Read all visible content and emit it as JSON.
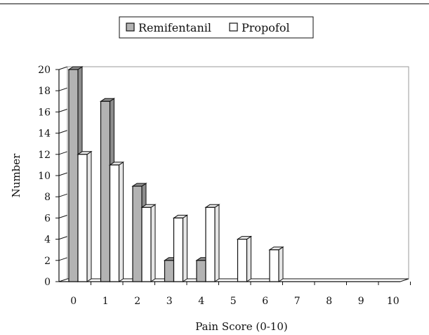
{
  "chart_data": {
    "type": "bar",
    "categories": [
      "0",
      "1",
      "2",
      "3",
      "4",
      "5",
      "6",
      "7",
      "8",
      "9",
      "10"
    ],
    "series": [
      {
        "name": "Remifentanil",
        "values": [
          20,
          17,
          9,
          2,
          2,
          0,
          0,
          0,
          0,
          0,
          0
        ],
        "color": "#b3b3b3"
      },
      {
        "name": "Propofol",
        "values": [
          12,
          11,
          7,
          6,
          7,
          4,
          3,
          0,
          0,
          0,
          0
        ],
        "color": "#ffffff"
      }
    ],
    "xlabel": "Pain Score (0-10)",
    "ylabel": "Number",
    "ylim": [
      0,
      20
    ],
    "yticks": [
      0,
      2,
      4,
      6,
      8,
      10,
      12,
      14,
      16,
      18,
      20
    ],
    "grid": true,
    "legend_position": "top"
  }
}
